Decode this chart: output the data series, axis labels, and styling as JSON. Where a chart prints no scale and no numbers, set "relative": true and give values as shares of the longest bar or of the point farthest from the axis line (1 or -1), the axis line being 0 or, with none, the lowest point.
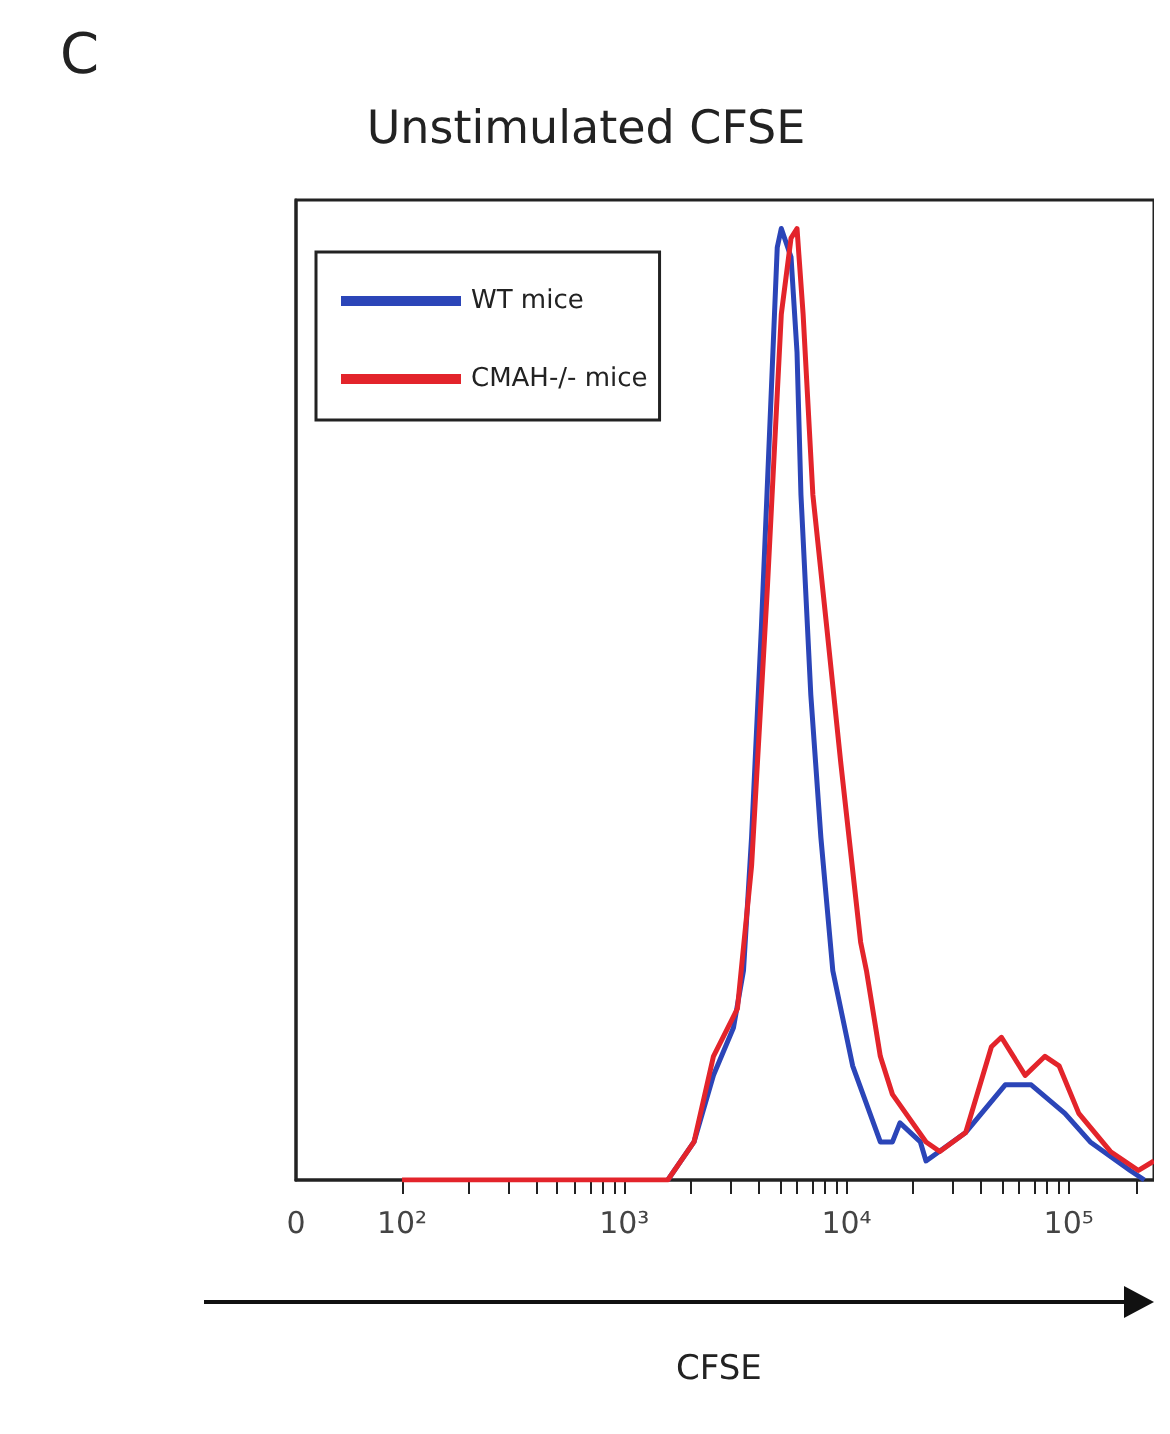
{
  "chart_data": {
    "type": "line",
    "title": "Unstimulated CFSE",
    "xlabel": "CFSE",
    "annotations": [
      "C"
    ],
    "log": "x",
    "relative": true,
    "line_style": "solid",
    "marker": "none",
    "legend": "top left",
    "grid": false,
    "xlim": [
      0,
      242000
    ],
    "xticks": [
      {
        "value": 0,
        "label": "0"
      },
      {
        "value": 100,
        "label": "10²"
      },
      {
        "value": 200,
        "label": null
      },
      {
        "value": 300,
        "label": null
      },
      {
        "value": 400,
        "label": null
      },
      {
        "value": 500,
        "label": null
      },
      {
        "value": 600,
        "label": null
      },
      {
        "value": 700,
        "label": null
      },
      {
        "value": 800,
        "label": null
      },
      {
        "value": 900,
        "label": null
      },
      {
        "value": 1000,
        "label": "10³"
      },
      {
        "value": 2000,
        "label": null
      },
      {
        "value": 3000,
        "label": null
      },
      {
        "value": 4000,
        "label": null
      },
      {
        "value": 5000,
        "label": null
      },
      {
        "value": 6000,
        "label": null
      },
      {
        "value": 7000,
        "label": null
      },
      {
        "value": 8000,
        "label": null
      },
      {
        "value": 9000,
        "label": null
      },
      {
        "value": 10000,
        "label": "10⁴"
      },
      {
        "value": 20000,
        "label": null
      },
      {
        "value": 30000,
        "label": null
      },
      {
        "value": 40000,
        "label": null
      },
      {
        "value": 50000,
        "label": null
      },
      {
        "value": 60000,
        "label": null
      },
      {
        "value": 70000,
        "label": null
      },
      {
        "value": 80000,
        "label": null
      },
      {
        "value": 90000,
        "label": null
      },
      {
        "value": 100000,
        "label": "10⁵"
      },
      {
        "value": 200000,
        "label": null
      }
    ],
    "series": [
      {
        "name": "WT mice",
        "color": "#2b45b8",
        "x": [
          1570,
          2060,
          2520,
          3100,
          3440,
          3740,
          4140,
          4590,
          4880,
          5090,
          5630,
          5990,
          6240,
          6910,
          7670,
          8680,
          10660,
          14200,
          16100,
          17400,
          21500,
          22800,
          34400,
          51800,
          67800,
          96100,
          125000,
          189000,
          219000
        ],
        "values": [
          0,
          0.04,
          0.11,
          0.16,
          0.22,
          0.36,
          0.58,
          0.83,
          0.98,
          1,
          0.97,
          0.87,
          0.72,
          0.51,
          0.36,
          0.22,
          0.12,
          0.04,
          0.04,
          0.06,
          0.04,
          0.02,
          0.05,
          0.1,
          0.1,
          0.07,
          0.04,
          0.01,
          0
        ]
      },
      {
        "name": "CMAH-/- mice",
        "color": "#e3242b",
        "x": [
          100,
          1150,
          1570,
          2060,
          2520,
          3230,
          3740,
          4400,
          5090,
          5630,
          5990,
          6380,
          7060,
          8160,
          9410,
          11580,
          12300,
          14200,
          16100,
          18500,
          22800,
          26300,
          34400,
          44900,
          49800,
          63700,
          78200,
          90500,
          111000,
          154000,
          206000,
          242000
        ],
        "values": [
          0,
          0,
          0,
          0.04,
          0.13,
          0.18,
          0.33,
          0.62,
          0.91,
          0.99,
          1,
          0.91,
          0.72,
          0.58,
          0.44,
          0.25,
          0.22,
          0.13,
          0.09,
          0.07,
          0.04,
          0.03,
          0.05,
          0.14,
          0.15,
          0.11,
          0.13,
          0.12,
          0.07,
          0.03,
          0.01,
          0.02
        ]
      }
    ]
  }
}
